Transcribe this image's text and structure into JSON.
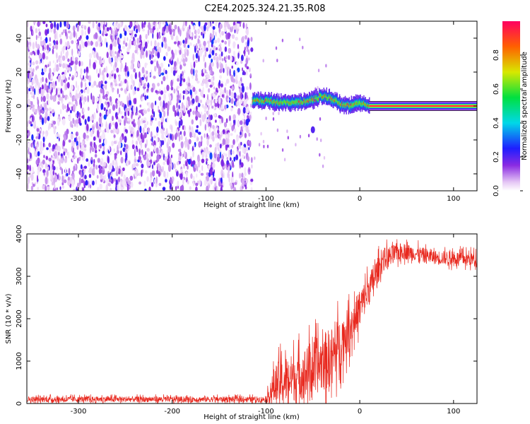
{
  "title": "C2E4.2025.324.21.35.R08",
  "chart_data": [
    {
      "type": "heatmap",
      "xlabel": "Height of straight line (km)",
      "ylabel": "Frequency (Hz)",
      "xlim": [
        -355,
        125
      ],
      "ylim": [
        -50,
        50
      ],
      "x_ticks": [
        "-300",
        "-200",
        "-100",
        "0",
        "100"
      ],
      "y_ticks": [
        "-40",
        "-20",
        "0",
        "20",
        "40"
      ],
      "colorbar_label": "Normalized spectral amplitude",
      "colorbar_ticks": [
        "0.0",
        "0.2",
        "0.4",
        "0.6",
        "0.8"
      ],
      "colorbar_range": [
        0,
        1
      ],
      "regions": [
        {
          "name": "noise",
          "x_range": [
            -355,
            -115
          ],
          "freq_range": [
            -50,
            50
          ],
          "amplitude": 0.1
        },
        {
          "name": "emerging tone",
          "x_range": [
            -115,
            10
          ],
          "freq_center": 3,
          "amplitude": 0.5
        },
        {
          "name": "clean tone",
          "x_range": [
            10,
            125
          ],
          "freq_center": 0,
          "amplitude": 1.0
        }
      ],
      "tone_track": [
        {
          "x": -115,
          "f": 3
        },
        {
          "x": -100,
          "f": 3
        },
        {
          "x": -85,
          "f": 2
        },
        {
          "x": -70,
          "f": 2
        },
        {
          "x": -55,
          "f": 3
        },
        {
          "x": -40,
          "f": 6
        },
        {
          "x": -30,
          "f": 4
        },
        {
          "x": -20,
          "f": 1
        },
        {
          "x": -10,
          "f": 0
        },
        {
          "x": 0,
          "f": 2
        },
        {
          "x": 10,
          "f": 0
        },
        {
          "x": 125,
          "f": 0
        }
      ]
    },
    {
      "type": "line",
      "xlabel": "Height of straight line (km)",
      "ylabel": "SNR (10 * v/v)",
      "xlim": [
        -355,
        125
      ],
      "ylim": [
        0,
        4000
      ],
      "x_ticks": [
        "-300",
        "-200",
        "-100",
        "0",
        "100"
      ],
      "y_ticks": [
        "0",
        "1000",
        "2000",
        "3000",
        "4000"
      ],
      "color": "#e8281e",
      "envelope": [
        {
          "x": -355,
          "mean": 100,
          "spread": 120
        },
        {
          "x": -100,
          "mean": 100,
          "spread": 120
        },
        {
          "x": -90,
          "mean": 450,
          "spread": 900
        },
        {
          "x": -60,
          "mean": 700,
          "spread": 1100
        },
        {
          "x": -30,
          "mean": 1100,
          "spread": 1300
        },
        {
          "x": -10,
          "mean": 1800,
          "spread": 900
        },
        {
          "x": 10,
          "mean": 2700,
          "spread": 700
        },
        {
          "x": 25,
          "mean": 3400,
          "spread": 500
        },
        {
          "x": 45,
          "mean": 3600,
          "spread": 350
        },
        {
          "x": 80,
          "mean": 3450,
          "spread": 300
        },
        {
          "x": 125,
          "mean": 3400,
          "spread": 300
        }
      ]
    }
  ]
}
